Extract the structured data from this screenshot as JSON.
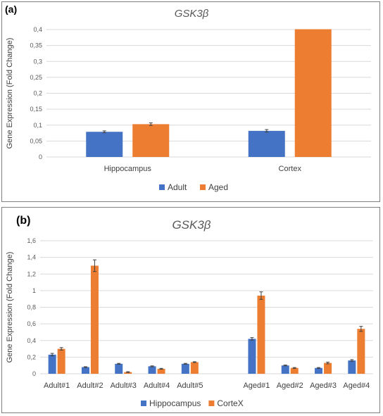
{
  "panels": {
    "a_label": "(a)",
    "b_label": "(b)"
  },
  "colors": {
    "adult": "#4472c4",
    "aged": "#ed7d31"
  },
  "chart_data": [
    {
      "type": "bar",
      "title": "GSK3β",
      "ylabel": "Gene Expression (Fold Change)",
      "xlabel": "",
      "categories": [
        "Hippocampus",
        "Cortex"
      ],
      "series": [
        {
          "name": "Adult",
          "values": [
            0.079,
            0.082
          ],
          "errors": [
            0.003,
            0.004
          ]
        },
        {
          "name": "Aged",
          "values": [
            0.103,
            0.401
          ],
          "errors": [
            0.004,
            0.0
          ]
        }
      ],
      "ylim": [
        0,
        0.4
      ],
      "yticks": [
        0,
        0.05,
        0.1,
        0.15,
        0.2,
        0.25,
        0.3,
        0.35,
        0.4
      ],
      "ytick_labels": [
        "0",
        "0,05",
        "0,1",
        "0,15",
        "0,2",
        "0,25",
        "0,3",
        "0,35",
        "0,4"
      ],
      "grid": true,
      "legend": "bottom"
    },
    {
      "type": "bar",
      "title": "GSK3β",
      "ylabel": "Gene Expression (Fold Change)",
      "xlabel": "",
      "categories": [
        "Adult#1",
        "Adult#2",
        "Adult#3",
        "Adult#4",
        "Adult#5",
        "",
        "Aged#1",
        "Aged#2",
        "Aged#3",
        "Aged#4"
      ],
      "series": [
        {
          "name": "Hippocampus",
          "values": [
            0.23,
            0.08,
            0.12,
            0.09,
            0.12,
            null,
            0.42,
            0.1,
            0.07,
            0.16
          ],
          "errors": [
            0.015,
            0.005,
            0.005,
            0.005,
            0.005,
            null,
            0.015,
            0.005,
            0.005,
            0.01
          ]
        },
        {
          "name": "CorteX",
          "values": [
            0.3,
            1.3,
            0.02,
            0.06,
            0.14,
            null,
            0.94,
            0.07,
            0.13,
            0.54
          ],
          "errors": [
            0.015,
            0.07,
            0.005,
            0.005,
            0.005,
            null,
            0.045,
            0.005,
            0.01,
            0.03
          ]
        }
      ],
      "ylim": [
        0,
        1.6
      ],
      "yticks": [
        0,
        0.2,
        0.4,
        0.6,
        0.8,
        1,
        1.2,
        1.4,
        1.6
      ],
      "ytick_labels": [
        "0",
        "0,2",
        "0,4",
        "0,6",
        "0,8",
        "1",
        "1,2",
        "1,4",
        "1,6"
      ],
      "grid": true,
      "legend": "bottom"
    }
  ]
}
